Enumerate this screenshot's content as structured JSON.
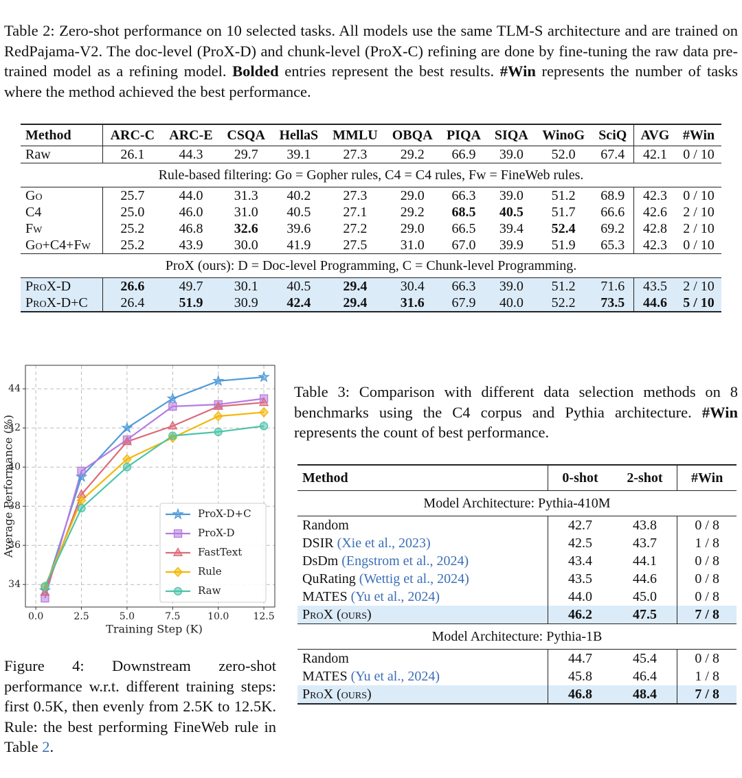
{
  "table2": {
    "caption": [
      {
        "text": "Table 2: Zero-shot performance on 10 selected tasks. All models use the same TLM-S architecture and are trained on RedPajama-V2. The doc-level (ProX-D) and chunk-level (ProX-C) refining are done by fine-tuning the raw data pre-trained model as a refining model. "
      },
      {
        "text": "Bolded",
        "bold": true
      },
      {
        "text": " entries represent the best results. "
      },
      {
        "text": "#Win",
        "bold": true
      },
      {
        "text": " represents the number of tasks where the method achieved the best performance."
      }
    ],
    "header": [
      "Method",
      "ARC-C",
      "ARC-E",
      "CSQA",
      "HellaS",
      "MMLU",
      "OBQA",
      "PIQA",
      "SIQA",
      "WinoG",
      "SciQ",
      "AVG",
      "#Win"
    ],
    "groups": [
      {
        "rows": [
          {
            "cells": [
              "Raw",
              "26.1",
              "44.3",
              "29.7",
              "39.1",
              "27.3",
              "29.2",
              "66.9",
              "39.0",
              "52.0",
              "67.4",
              "42.1",
              "0 / 10"
            ]
          }
        ]
      },
      {
        "note": "Rule-based filtering: Go = Gopher rules, C4 = C4 rules, Fw = FineWeb rules.",
        "rows": [
          {
            "cells": [
              "Go",
              "25.7",
              "44.0",
              "31.3",
              "40.2",
              "27.3",
              "29.0",
              "66.3",
              "39.0",
              "51.2",
              "68.9",
              "42.3",
              "0 / 10"
            ],
            "caps": true
          },
          {
            "cells": [
              "C4",
              "25.0",
              "46.0",
              "31.0",
              "40.5",
              "27.1",
              "29.2",
              "68.5",
              "40.5",
              "51.7",
              "66.6",
              "42.6",
              "2 / 10"
            ],
            "bold": [
              7,
              8
            ]
          },
          {
            "cells": [
              "Fw",
              "25.2",
              "46.8",
              "32.6",
              "39.6",
              "27.2",
              "29.0",
              "66.5",
              "39.4",
              "52.4",
              "69.2",
              "42.8",
              "2 / 10"
            ],
            "bold": [
              3,
              9
            ],
            "caps": true
          },
          {
            "cells": [
              "Go+C4+Fw",
              "25.2",
              "43.9",
              "30.0",
              "41.9",
              "27.5",
              "31.0",
              "67.0",
              "39.9",
              "51.9",
              "65.3",
              "42.3",
              "0 / 10"
            ],
            "caps": true
          }
        ]
      },
      {
        "note": "ProX (ours): D = Doc-level Programming, C = Chunk-level Programming.",
        "rows": [
          {
            "cells": [
              "ProX-D",
              "26.6",
              "49.7",
              "30.1",
              "40.5",
              "29.4",
              "30.4",
              "66.3",
              "39.0",
              "51.2",
              "71.6",
              "43.5",
              "2 / 10"
            ],
            "bold": [
              1,
              5
            ],
            "caps": true,
            "highlight": true
          },
          {
            "cells": [
              "ProX-D+C",
              "26.4",
              "51.9",
              "30.9",
              "42.4",
              "29.4",
              "31.6",
              "67.9",
              "40.0",
              "52.2",
              "73.5",
              "44.6",
              "5 / 10"
            ],
            "bold": [
              2,
              4,
              5,
              6,
              10,
              11,
              12
            ],
            "caps": true,
            "highlight": true
          }
        ]
      }
    ]
  },
  "chart_data": {
    "type": "line",
    "x": [
      0.5,
      2.5,
      5.0,
      7.5,
      10.0,
      12.5
    ],
    "series": [
      {
        "name": "ProX-D+C",
        "color": "#4f9ad8",
        "marker": "star",
        "values": [
          33.7,
          39.5,
          42.0,
          43.5,
          44.4,
          44.6
        ]
      },
      {
        "name": "ProX-D",
        "color": "#b57be0",
        "marker": "square",
        "values": [
          33.3,
          39.8,
          41.4,
          43.1,
          43.2,
          43.5
        ]
      },
      {
        "name": "FastText",
        "color": "#dc6a78",
        "marker": "triangle",
        "values": [
          33.6,
          38.6,
          41.3,
          42.1,
          43.1,
          43.3
        ]
      },
      {
        "name": "Rule",
        "color": "#f2b705",
        "marker": "diamond",
        "values": [
          33.9,
          38.3,
          40.4,
          41.5,
          42.6,
          42.8
        ]
      },
      {
        "name": "Raw",
        "color": "#4cc3a8",
        "marker": "circle",
        "values": [
          33.9,
          37.9,
          40.0,
          41.6,
          41.8,
          42.1
        ]
      }
    ],
    "xlabel": "Training Step (K)",
    "ylabel": "Average Performance (%)",
    "xlim": [
      -0.57,
      13.1
    ],
    "ylim": [
      32.85,
      45.2
    ],
    "xticks": [
      {
        "value": 0,
        "label": "0.0"
      },
      2.5,
      {
        "value": 5,
        "label": "5.0"
      },
      7.5,
      {
        "value": 10,
        "label": "10.0"
      },
      12.5
    ],
    "yticks": [
      34,
      36,
      38,
      40,
      42,
      44
    ],
    "grid": true,
    "legend": "lower right"
  },
  "figure4": {
    "caption": [
      {
        "text": "Figure 4: Downstream zero-shot performance w.r.t. different training steps: first 0.5K, then evenly from 2.5K to 12.5K. Rule: the best performing FineWeb rule in Table "
      },
      {
        "text": "2",
        "link": true
      },
      {
        "text": "."
      }
    ]
  },
  "table3": {
    "caption": [
      {
        "text": "Table 3: Comparison with different data selection methods on 8 benchmarks using the C4 corpus and Pythia architecture. "
      },
      {
        "text": "#Win",
        "bold": true
      },
      {
        "text": " represents the count of best performance."
      }
    ],
    "header": [
      "Method",
      "0-shot",
      "2-shot",
      "#Win"
    ],
    "groups": [
      {
        "note": "Model Architecture: Pythia-410M",
        "rows": [
          {
            "cells": [
              "Random",
              "42.7",
              "43.8",
              "0 / 8"
            ]
          },
          {
            "cells": [
              "DSIR",
              "42.5",
              "43.7",
              "1 / 8"
            ],
            "cite": "(Xie et al., 2023)"
          },
          {
            "cells": [
              "DsDm",
              "43.4",
              "44.1",
              "0 / 8"
            ],
            "cite": "(Engstrom et al., 2024)"
          },
          {
            "cells": [
              "QuRating",
              "43.5",
              "44.6",
              "0 / 8"
            ],
            "cite": "(Wettig et al., 2024)"
          },
          {
            "cells": [
              "MATES",
              "44.0",
              "45.0",
              "0 / 8"
            ],
            "cite": "(Yu et al., 2024)"
          },
          {
            "cells": [
              "ProX (ours)",
              "46.2",
              "47.5",
              "7 / 8"
            ],
            "bold": [
              1,
              2,
              3
            ],
            "caps": true,
            "highlight": true
          }
        ]
      },
      {
        "note": "Model Architecture: Pythia-1B",
        "rows": [
          {
            "cells": [
              "Random",
              "44.7",
              "45.4",
              "0 / 8"
            ]
          },
          {
            "cells": [
              "MATES",
              "45.8",
              "46.4",
              "1 / 8"
            ],
            "cite": "(Yu et al., 2024)"
          },
          {
            "cells": [
              "ProX (ours)",
              "46.8",
              "48.4",
              "7 / 8"
            ],
            "bold": [
              1,
              2,
              3
            ],
            "caps": true,
            "highlight": true
          }
        ]
      }
    ]
  }
}
